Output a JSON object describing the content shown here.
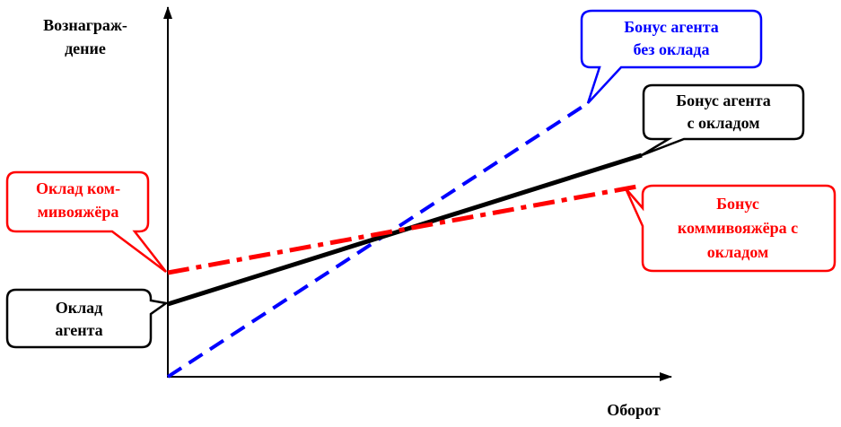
{
  "axes": {
    "y_label": [
      "Вознаграж-",
      "дение"
    ],
    "x_label": "Оборот"
  },
  "callouts": [
    {
      "lines": [
        "Бонус агента",
        "без оклада"
      ]
    },
    {
      "lines": [
        "Бонус агента",
        "с окладом"
      ]
    },
    {
      "lines": [
        "Бонус",
        "коммивояжёра с",
        "окладом"
      ]
    },
    {
      "lines": [
        "Оклад ком-",
        "мивояжёра"
      ]
    },
    {
      "lines": [
        "Оклад",
        "агента"
      ]
    }
  ]
}
